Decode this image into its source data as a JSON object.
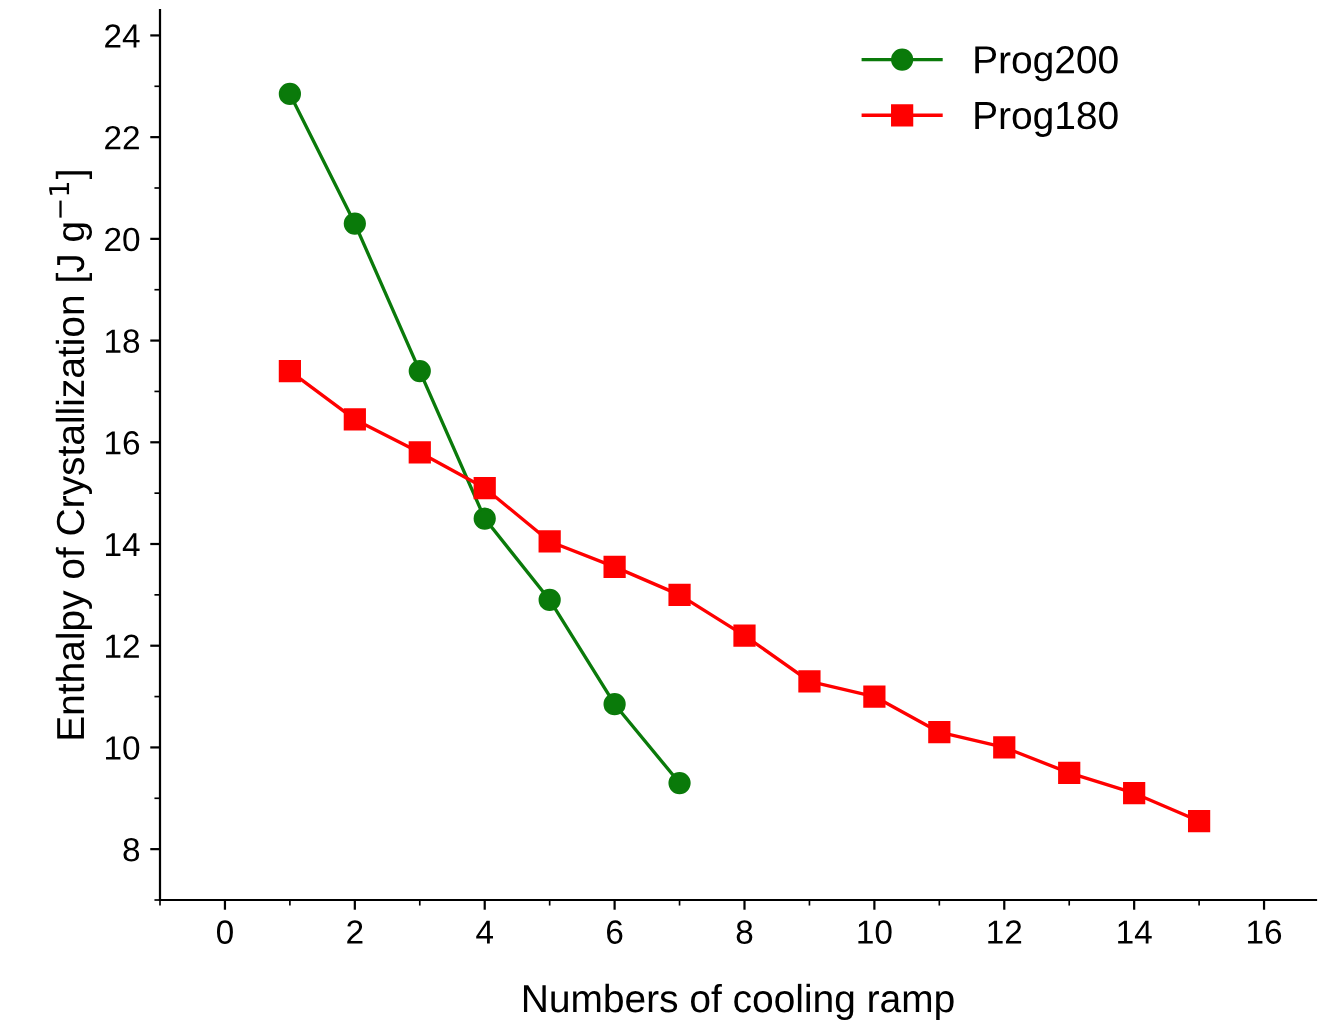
{
  "chart_data": {
    "type": "line",
    "xlabel": "Numbers of cooling ramp",
    "ylabel": "Enthalpy of Crystallization [J g$^{−1}$]",
    "x": [
      1,
      2,
      3,
      4,
      5,
      6,
      7,
      8,
      9,
      10,
      11,
      12,
      13,
      14,
      15
    ],
    "series": [
      {
        "name": "Prog200",
        "color": "#0a7a0a",
        "marker": "circle",
        "values": [
          22.85,
          20.3,
          17.4,
          14.5,
          12.9,
          10.85,
          9.3,
          null,
          null,
          null,
          null,
          null,
          null,
          null,
          null
        ]
      },
      {
        "name": "Prog180",
        "color": "#ff0000",
        "marker": "square",
        "values": [
          17.4,
          16.45,
          15.8,
          15.1,
          14.05,
          13.55,
          13.0,
          12.2,
          11.3,
          11.0,
          10.3,
          10.0,
          9.5,
          9.1,
          8.55
        ]
      }
    ],
    "xlim": [
      -1,
      16.8
    ],
    "xticks": [
      0,
      2,
      4,
      6,
      8,
      10,
      12,
      14,
      16
    ],
    "ylim": [
      7,
      24.5
    ],
    "yticks": [
      8,
      10,
      12,
      14,
      16,
      18,
      20,
      22,
      24
    ],
    "grid": false,
    "legend": "top right",
    "line_style": "solid"
  }
}
